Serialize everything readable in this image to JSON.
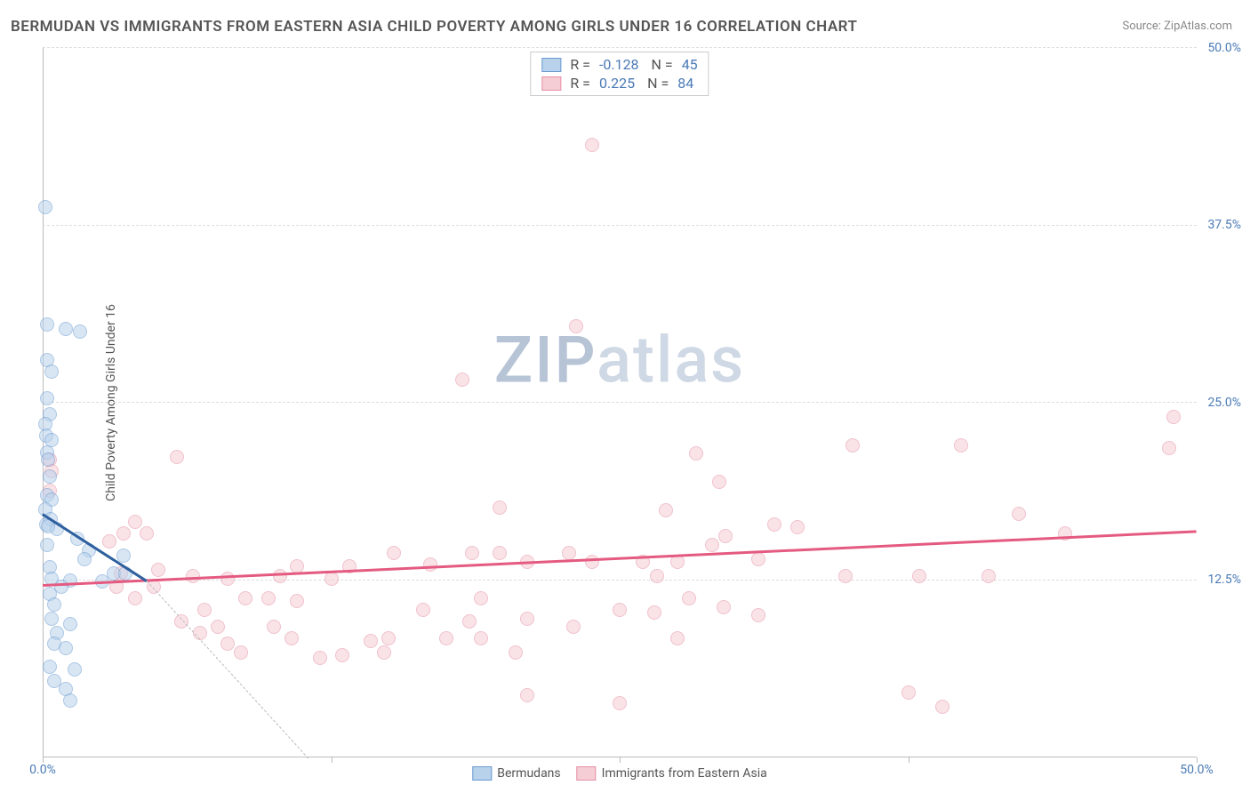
{
  "title": "BERMUDAN VS IMMIGRANTS FROM EASTERN ASIA CHILD POVERTY AMONG GIRLS UNDER 16 CORRELATION CHART",
  "source": "Source: ZipAtlas.com",
  "ylabel": "Child Poverty Among Girls Under 16",
  "watermark": {
    "text_a": "ZIP",
    "text_b": "atlas",
    "color_a": "#b7c4d6",
    "color_b": "#cfd8e5"
  },
  "colors": {
    "title_text": "#555555",
    "source_text": "#888888",
    "axis_label_text": "#4a7ab5",
    "grid": "#dddddd",
    "axis": "#bbbbbb",
    "series_a_fill": "#b9d2ec",
    "series_a_stroke": "#6a9ad0",
    "series_a_line": "#2e5f9e",
    "series_b_fill": "#f5cdd5",
    "series_b_stroke": "#e590a6",
    "series_b_line": "#e45a80"
  },
  "chart": {
    "type": "scatter",
    "xlim": [
      0,
      50
    ],
    "ylim": [
      0,
      50
    ],
    "ytick_step": 12.5,
    "xtick_step": 12.5,
    "y_ticks": [
      "12.5%",
      "25.0%",
      "37.5%",
      "50.0%"
    ],
    "x_ticks_labeled": [
      {
        "pos": 0,
        "label": "0.0%"
      },
      {
        "pos": 50,
        "label": "50.0%"
      }
    ],
    "x_tick_marks": [
      0,
      12.5,
      25,
      37.5,
      50
    ],
    "point_radius": 8,
    "point_fill_opacity": 0.55,
    "background": "#ffffff"
  },
  "series_a": {
    "name": "Bermudans",
    "R": "-0.128",
    "N": "45",
    "trend": {
      "x1": 0,
      "y1": 17.2,
      "x2": 4.5,
      "y2": 12.5
    },
    "dash_extend": {
      "x1": 4.5,
      "y1": 12.5,
      "x2": 11.5,
      "y2": 0
    },
    "points": [
      [
        0.1,
        38.8
      ],
      [
        0.2,
        30.5
      ],
      [
        1.0,
        30.2
      ],
      [
        1.6,
        30.0
      ],
      [
        0.2,
        28.0
      ],
      [
        0.4,
        27.2
      ],
      [
        0.2,
        25.3
      ],
      [
        0.3,
        24.2
      ],
      [
        0.1,
        23.5
      ],
      [
        0.15,
        22.7
      ],
      [
        0.4,
        22.4
      ],
      [
        0.2,
        21.5
      ],
      [
        0.25,
        21.0
      ],
      [
        0.3,
        19.8
      ],
      [
        0.2,
        18.5
      ],
      [
        0.4,
        18.2
      ],
      [
        0.1,
        17.5
      ],
      [
        0.35,
        16.8
      ],
      [
        0.15,
        16.4
      ],
      [
        0.6,
        16.1
      ],
      [
        0.25,
        16.3
      ],
      [
        1.5,
        15.4
      ],
      [
        0.2,
        15.0
      ],
      [
        2.0,
        14.6
      ],
      [
        1.8,
        14.0
      ],
      [
        3.5,
        14.2
      ],
      [
        0.3,
        13.4
      ],
      [
        3.1,
        13.0
      ],
      [
        3.6,
        13.0
      ],
      [
        0.4,
        12.6
      ],
      [
        1.2,
        12.5
      ],
      [
        2.6,
        12.4
      ],
      [
        0.8,
        12.0
      ],
      [
        0.3,
        11.5
      ],
      [
        0.5,
        10.8
      ],
      [
        0.4,
        9.8
      ],
      [
        1.2,
        9.4
      ],
      [
        0.6,
        8.8
      ],
      [
        0.5,
        8.0
      ],
      [
        1.0,
        7.7
      ],
      [
        0.3,
        6.4
      ],
      [
        1.4,
        6.2
      ],
      [
        0.5,
        5.4
      ],
      [
        1.0,
        4.8
      ],
      [
        1.2,
        4.0
      ]
    ]
  },
  "series_b": {
    "name": "Immigrants from Eastern Asia",
    "R": "0.225",
    "N": "84",
    "trend": {
      "x1": 0,
      "y1": 12.2,
      "x2": 50,
      "y2": 16.0
    },
    "points": [
      [
        23.8,
        43.2
      ],
      [
        23.1,
        30.4
      ],
      [
        18.2,
        26.6
      ],
      [
        49.0,
        24.0
      ],
      [
        48.8,
        21.8
      ],
      [
        35.1,
        22.0
      ],
      [
        39.8,
        22.0
      ],
      [
        28.3,
        21.4
      ],
      [
        0.3,
        21.0
      ],
      [
        5.8,
        21.2
      ],
      [
        0.4,
        20.2
      ],
      [
        29.3,
        19.4
      ],
      [
        0.3,
        18.8
      ],
      [
        19.8,
        17.6
      ],
      [
        27.0,
        17.4
      ],
      [
        42.3,
        17.2
      ],
      [
        4.0,
        16.6
      ],
      [
        31.7,
        16.4
      ],
      [
        32.7,
        16.2
      ],
      [
        3.5,
        15.8
      ],
      [
        4.5,
        15.8
      ],
      [
        29.6,
        15.6
      ],
      [
        44.3,
        15.8
      ],
      [
        2.9,
        15.2
      ],
      [
        29.0,
        15.0
      ],
      [
        15.2,
        14.4
      ],
      [
        18.6,
        14.4
      ],
      [
        19.8,
        14.4
      ],
      [
        22.8,
        14.4
      ],
      [
        31.0,
        14.0
      ],
      [
        11.0,
        13.5
      ],
      [
        13.3,
        13.5
      ],
      [
        16.8,
        13.6
      ],
      [
        21.0,
        13.8
      ],
      [
        23.8,
        13.8
      ],
      [
        26.0,
        13.8
      ],
      [
        27.5,
        13.8
      ],
      [
        10.3,
        12.8
      ],
      [
        26.6,
        12.8
      ],
      [
        34.8,
        12.8
      ],
      [
        38.0,
        12.8
      ],
      [
        41.0,
        12.8
      ],
      [
        3.4,
        13.0
      ],
      [
        5.0,
        13.2
      ],
      [
        6.5,
        12.8
      ],
      [
        8.0,
        12.6
      ],
      [
        12.5,
        12.6
      ],
      [
        3.2,
        12.0
      ],
      [
        4.8,
        12.0
      ],
      [
        4.0,
        11.2
      ],
      [
        8.8,
        11.2
      ],
      [
        9.8,
        11.2
      ],
      [
        11.0,
        11.0
      ],
      [
        19.0,
        11.2
      ],
      [
        28.0,
        11.2
      ],
      [
        7.0,
        10.4
      ],
      [
        16.5,
        10.4
      ],
      [
        25.0,
        10.4
      ],
      [
        26.5,
        10.2
      ],
      [
        29.5,
        10.6
      ],
      [
        31.0,
        10.0
      ],
      [
        6.0,
        9.6
      ],
      [
        18.5,
        9.6
      ],
      [
        7.6,
        9.2
      ],
      [
        10.0,
        9.2
      ],
      [
        21.0,
        9.8
      ],
      [
        23.0,
        9.2
      ],
      [
        6.8,
        8.8
      ],
      [
        10.8,
        8.4
      ],
      [
        14.2,
        8.2
      ],
      [
        15.0,
        8.4
      ],
      [
        17.5,
        8.4
      ],
      [
        19.0,
        8.4
      ],
      [
        27.5,
        8.4
      ],
      [
        8.0,
        8.0
      ],
      [
        14.8,
        7.4
      ],
      [
        8.6,
        7.4
      ],
      [
        12.0,
        7.0
      ],
      [
        13.0,
        7.2
      ],
      [
        20.5,
        7.4
      ],
      [
        21.0,
        4.4
      ],
      [
        25.0,
        3.8
      ],
      [
        37.5,
        4.6
      ],
      [
        39.0,
        3.6
      ]
    ]
  }
}
